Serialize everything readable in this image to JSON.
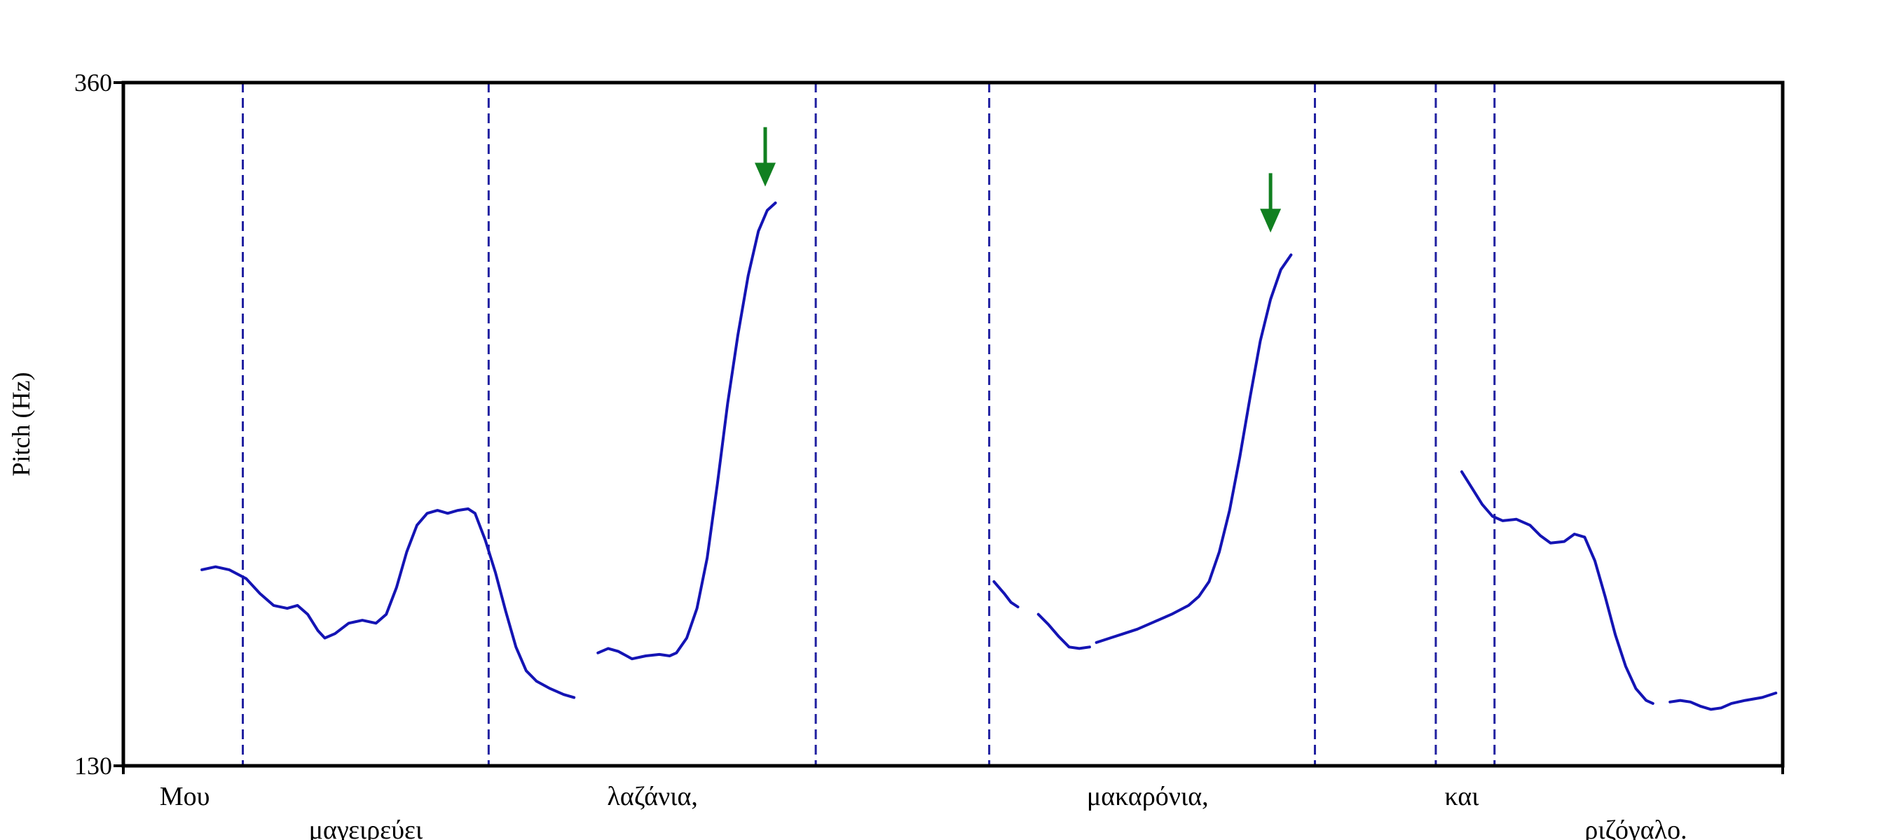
{
  "chart_data": {
    "type": "line",
    "title": "",
    "xlabel": "",
    "ylabel": "Pitch (Hz)",
    "x_unit": "s",
    "xlim": [
      0,
      2.43
    ],
    "ylim": [
      130,
      360
    ],
    "yticks": [
      130,
      360
    ],
    "colors": {
      "pitch": "#1414b4",
      "boundary": "#2020a0",
      "arrow": "#118020",
      "axis": "#000000"
    },
    "segments": [
      {
        "points": [
          [
            0.115,
            196.0
          ],
          [
            0.135,
            197.0
          ],
          [
            0.155,
            196.0
          ],
          [
            0.18,
            193.0
          ],
          [
            0.2,
            188.0
          ],
          [
            0.22,
            184.0
          ],
          [
            0.24,
            183.0
          ],
          [
            0.255,
            184.0
          ],
          [
            0.27,
            181.0
          ],
          [
            0.285,
            175.5
          ],
          [
            0.295,
            173.0
          ],
          [
            0.31,
            174.5
          ],
          [
            0.33,
            178.0
          ],
          [
            0.35,
            179.0
          ],
          [
            0.37,
            178.0
          ],
          [
            0.385,
            181.0
          ],
          [
            0.4,
            190.0
          ],
          [
            0.415,
            202.0
          ],
          [
            0.43,
            211.0
          ],
          [
            0.445,
            215.0
          ],
          [
            0.46,
            216.0
          ],
          [
            0.475,
            215.0
          ],
          [
            0.49,
            216.0
          ],
          [
            0.505,
            216.5
          ],
          [
            0.515,
            215.0
          ],
          [
            0.53,
            206.0
          ],
          [
            0.545,
            195.0
          ],
          [
            0.56,
            182.0
          ],
          [
            0.575,
            170.0
          ],
          [
            0.59,
            162.0
          ],
          [
            0.605,
            158.5
          ],
          [
            0.625,
            156.0
          ],
          [
            0.645,
            154.0
          ],
          [
            0.66,
            153.0
          ]
        ]
      },
      {
        "points": [
          [
            0.695,
            168.0
          ],
          [
            0.71,
            169.5
          ],
          [
            0.725,
            168.5
          ],
          [
            0.745,
            166.0
          ],
          [
            0.765,
            167.0
          ],
          [
            0.785,
            167.5
          ],
          [
            0.8,
            167.0
          ],
          [
            0.81,
            168.0
          ],
          [
            0.825,
            173.0
          ],
          [
            0.84,
            183.0
          ],
          [
            0.855,
            200.0
          ],
          [
            0.87,
            225.0
          ],
          [
            0.885,
            252.0
          ],
          [
            0.9,
            275.0
          ],
          [
            0.915,
            295.0
          ],
          [
            0.93,
            310.0
          ],
          [
            0.943,
            317.0
          ],
          [
            0.955,
            319.5
          ]
        ]
      },
      {
        "points": [
          [
            1.275,
            192.0
          ],
          [
            1.29,
            188.0
          ],
          [
            1.3,
            185.0
          ],
          [
            1.31,
            183.5
          ]
        ]
      },
      {
        "points": [
          [
            1.34,
            181.0
          ],
          [
            1.355,
            177.5
          ],
          [
            1.37,
            173.5
          ],
          [
            1.385,
            170.0
          ],
          [
            1.4,
            169.5
          ],
          [
            1.415,
            170.0
          ]
        ]
      },
      {
        "points": [
          [
            1.425,
            171.5
          ],
          [
            1.445,
            173.0
          ],
          [
            1.465,
            174.5
          ],
          [
            1.485,
            176.0
          ],
          [
            1.51,
            178.5
          ],
          [
            1.535,
            181.0
          ],
          [
            1.56,
            184.0
          ],
          [
            1.575,
            187.0
          ],
          [
            1.59,
            192.0
          ],
          [
            1.605,
            202.0
          ],
          [
            1.62,
            216.0
          ],
          [
            1.635,
            234.0
          ],
          [
            1.65,
            254.0
          ],
          [
            1.665,
            273.0
          ],
          [
            1.68,
            287.0
          ],
          [
            1.695,
            297.0
          ],
          [
            1.71,
            302.0
          ]
        ]
      },
      {
        "points": [
          [
            1.96,
            229.0
          ],
          [
            1.975,
            223.5
          ],
          [
            1.99,
            218.0
          ],
          [
            2.005,
            214.0
          ],
          [
            2.02,
            212.5
          ],
          [
            2.04,
            213.0
          ],
          [
            2.06,
            211.0
          ],
          [
            2.075,
            207.5
          ],
          [
            2.09,
            205.0
          ],
          [
            2.11,
            205.5
          ],
          [
            2.125,
            208.0
          ],
          [
            2.14,
            207.0
          ],
          [
            2.155,
            199.0
          ],
          [
            2.17,
            187.0
          ],
          [
            2.185,
            174.0
          ],
          [
            2.2,
            163.5
          ],
          [
            2.215,
            156.0
          ],
          [
            2.23,
            152.0
          ],
          [
            2.24,
            151.0
          ]
        ]
      },
      {
        "points": [
          [
            2.265,
            151.5
          ],
          [
            2.28,
            152.0
          ],
          [
            2.295,
            151.5
          ],
          [
            2.31,
            150.0
          ],
          [
            2.325,
            149.0
          ],
          [
            2.34,
            149.5
          ],
          [
            2.355,
            151.0
          ],
          [
            2.375,
            152.0
          ],
          [
            2.4,
            153.0
          ],
          [
            2.42,
            154.5
          ]
        ]
      }
    ],
    "boundaries": [
      0.175,
      0.535,
      1.014,
      1.268,
      1.745,
      1.922,
      2.008
    ],
    "annotations": [
      {
        "type": "arrow",
        "x": 0.94,
        "y_from": 345,
        "y_to": 325
      },
      {
        "type": "arrow",
        "x": 1.68,
        "y_from": 329.5,
        "y_to": 309.5
      }
    ],
    "words": [
      {
        "text": "Μου",
        "x": 0.09,
        "row": 0
      },
      {
        "text": "μαγειρεύει",
        "x": 0.355,
        "row": 1
      },
      {
        "text": "λαζάνια,",
        "x": 0.775,
        "row": 0
      },
      {
        "text": "μακαρόνια,",
        "x": 1.5,
        "row": 0
      },
      {
        "text": "και",
        "x": 1.96,
        "row": 0
      },
      {
        "text": "ριζόγαλο.",
        "x": 2.215,
        "row": 1
      }
    ]
  }
}
